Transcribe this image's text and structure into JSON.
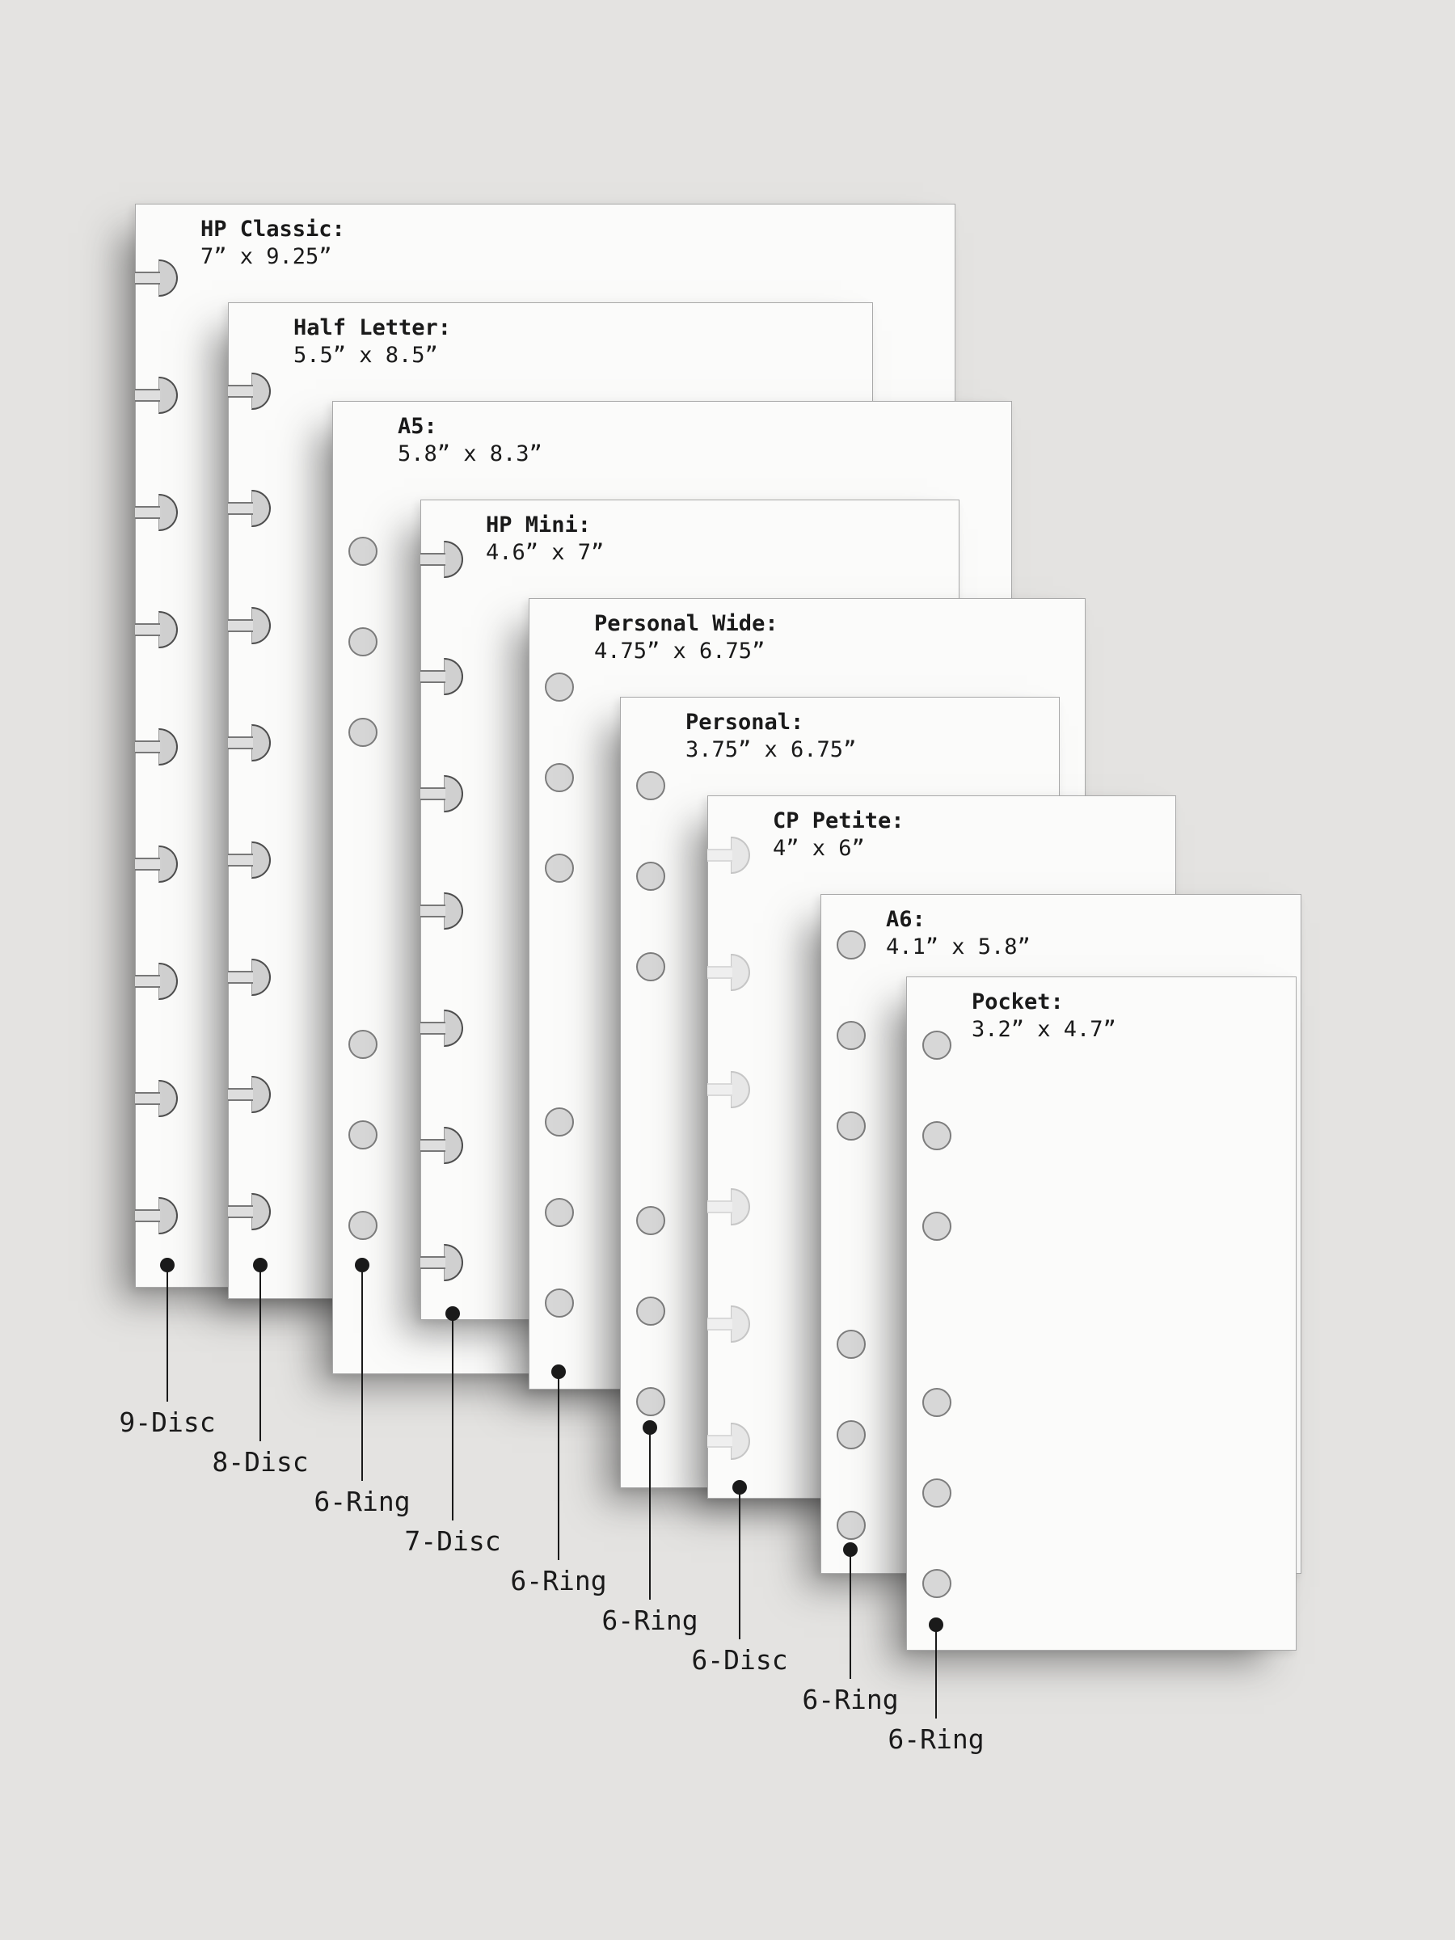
{
  "colors": {
    "background": "#e4e3e1",
    "paper": "#fbfbfa",
    "paper_edge": "#a9a9a9",
    "hole_fill": "#d7d7d7",
    "slot_fill": "#dedede",
    "disc_head_fill": "#d0d0d0",
    "ink": "#1a1a1a"
  },
  "sheets": [
    {
      "id": "hp-classic",
      "title": "HP Classic:",
      "dimensions": "7” x 9.25”",
      "binding_label": "9-Disc",
      "hole_type": "disc",
      "hole_count": 9
    },
    {
      "id": "half-letter",
      "title": "Half Letter:",
      "dimensions": "5.5” x 8.5”",
      "binding_label": "8-Disc",
      "hole_type": "disc",
      "hole_count": 8
    },
    {
      "id": "a5",
      "title": "A5:",
      "dimensions": "5.8” x 8.3”",
      "binding_label": "6-Ring",
      "hole_type": "ring",
      "hole_count": 6
    },
    {
      "id": "hp-mini",
      "title": "HP Mini:",
      "dimensions": "4.6” x 7”",
      "binding_label": "7-Disc",
      "hole_type": "disc",
      "hole_count": 7
    },
    {
      "id": "personal-wide",
      "title": "Personal Wide:",
      "dimensions": "4.75” x 6.75”",
      "binding_label": "6-Ring",
      "hole_type": "ring",
      "hole_count": 6
    },
    {
      "id": "personal",
      "title": "Personal:",
      "dimensions": "3.75” x 6.75”",
      "binding_label": "6-Ring",
      "hole_type": "ring",
      "hole_count": 6
    },
    {
      "id": "cp-petite",
      "title": "CP Petite:",
      "dimensions": "4” x 6”",
      "binding_label": "6-Disc",
      "hole_type": "disc",
      "hole_count": 6
    },
    {
      "id": "a6",
      "title": "A6:",
      "dimensions": "4.1” x 5.8”",
      "binding_label": "6-Ring",
      "hole_type": "ring",
      "hole_count": 6
    },
    {
      "id": "pocket",
      "title": "Pocket:",
      "dimensions": "3.2” x 4.7”",
      "binding_label": "6-Ring",
      "hole_type": "ring",
      "hole_count": 6
    }
  ]
}
